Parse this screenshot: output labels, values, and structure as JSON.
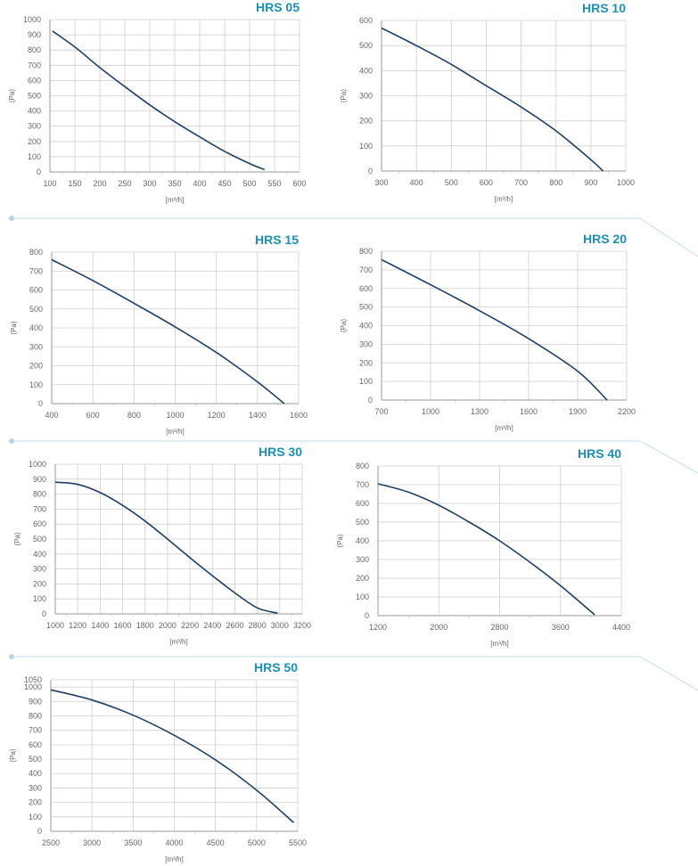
{
  "colors": {
    "curve": "#1e3f66",
    "title": "#1d8fb3",
    "grid": "#cfcfcf",
    "axis": "#666666",
    "divider": "#c5dde5"
  },
  "chart_data": [
    {
      "type": "line",
      "title": "HRS 05",
      "xlabel": "[m³/h]",
      "ylabel": "(Pa)",
      "xticks": [
        100,
        150,
        200,
        250,
        300,
        350,
        400,
        450,
        500,
        550,
        600
      ],
      "yticks": [
        0,
        100,
        200,
        300,
        400,
        500,
        600,
        700,
        800,
        900,
        1000
      ],
      "xlim": [
        100,
        600
      ],
      "ylim": [
        0,
        1000
      ],
      "grid": true,
      "series": [
        {
          "x": [
            105,
            150,
            200,
            250,
            300,
            350,
            400,
            450,
            500,
            530
          ],
          "y": [
            925,
            820,
            685,
            560,
            440,
            330,
            230,
            135,
            55,
            15
          ]
        }
      ]
    },
    {
      "type": "line",
      "title": "HRS 10",
      "xlabel": "[m³/h]",
      "ylabel": "(Pa)",
      "xticks": [
        300,
        400,
        500,
        600,
        700,
        800,
        900,
        1000
      ],
      "yticks": [
        0,
        100,
        200,
        300,
        400,
        500,
        600
      ],
      "xlim": [
        300,
        1000
      ],
      "ylim": [
        0,
        600
      ],
      "grid": true,
      "series": [
        {
          "x": [
            300,
            400,
            500,
            600,
            700,
            800,
            900,
            935
          ],
          "y": [
            570,
            500,
            425,
            340,
            255,
            160,
            45,
            0
          ]
        }
      ]
    },
    {
      "type": "line",
      "title": "HRS 15",
      "xlabel": "[m³/h]",
      "ylabel": "(Pa)",
      "xticks": [
        400,
        600,
        800,
        1000,
        1200,
        1400,
        1600
      ],
      "yticks": [
        0,
        100,
        200,
        300,
        400,
        500,
        600,
        700,
        800
      ],
      "xlim": [
        400,
        1600
      ],
      "ylim": [
        0,
        800
      ],
      "grid": true,
      "series": [
        {
          "x": [
            400,
            600,
            800,
            1000,
            1200,
            1400,
            1530
          ],
          "y": [
            760,
            650,
            530,
            405,
            270,
            115,
            0
          ]
        }
      ]
    },
    {
      "type": "line",
      "title": "HRS 20",
      "xlabel": "[m³/h]",
      "ylabel": "(Pa)",
      "xticks": [
        700,
        1000,
        1300,
        1600,
        1900,
        2200
      ],
      "yticks": [
        0,
        100,
        200,
        300,
        400,
        500,
        600,
        700,
        800
      ],
      "xlim": [
        700,
        2200
      ],
      "ylim": [
        0,
        800
      ],
      "grid": true,
      "series": [
        {
          "x": [
            700,
            1000,
            1300,
            1600,
            1900,
            2080
          ],
          "y": [
            755,
            620,
            480,
            330,
            155,
            0
          ]
        }
      ]
    },
    {
      "type": "line",
      "title": "HRS 30",
      "xlabel": "[m³/h]",
      "ylabel": "(Pa)",
      "xticks": [
        1000,
        1200,
        1400,
        1600,
        1800,
        2000,
        2200,
        2400,
        2600,
        2800,
        3000,
        3200
      ],
      "yticks": [
        0,
        100,
        200,
        300,
        400,
        500,
        600,
        700,
        800,
        900,
        1000
      ],
      "xlim": [
        1000,
        3200
      ],
      "ylim": [
        0,
        1000
      ],
      "grid": true,
      "series": [
        {
          "x": [
            1000,
            1200,
            1400,
            1600,
            1800,
            2000,
            2200,
            2400,
            2600,
            2800,
            2980
          ],
          "y": [
            880,
            865,
            810,
            725,
            620,
            500,
            375,
            255,
            140,
            40,
            5
          ]
        }
      ]
    },
    {
      "type": "line",
      "title": "HRS 40",
      "xlabel": "[m³/h]",
      "ylabel": "(Pa)",
      "xticks": [
        1200,
        2000,
        2800,
        3600,
        4400
      ],
      "yticks": [
        0,
        100,
        200,
        300,
        400,
        500,
        600,
        700,
        800
      ],
      "xlim": [
        1200,
        4400
      ],
      "ylim": [
        0,
        800
      ],
      "grid": true,
      "series": [
        {
          "x": [
            1200,
            1600,
            2000,
            2400,
            2800,
            3200,
            3600,
            4050
          ],
          "y": [
            705,
            660,
            590,
            500,
            400,
            285,
            160,
            5
          ]
        }
      ]
    },
    {
      "type": "line",
      "title": "HRS 50",
      "xlabel": "[m³/h]",
      "ylabel": "(Pa)",
      "xticks": [
        2500,
        3000,
        3500,
        4000,
        4500,
        5000,
        5500
      ],
      "yticks": [
        0,
        100,
        200,
        300,
        400,
        500,
        600,
        700,
        800,
        900,
        1000,
        1050
      ],
      "xlim": [
        2500,
        5500
      ],
      "ylim": [
        0,
        1050
      ],
      "grid": true,
      "series": [
        {
          "x": [
            2500,
            3000,
            3500,
            4000,
            4500,
            5000,
            5450
          ],
          "y": [
            980,
            910,
            805,
            665,
            495,
            285,
            60
          ]
        }
      ]
    }
  ]
}
